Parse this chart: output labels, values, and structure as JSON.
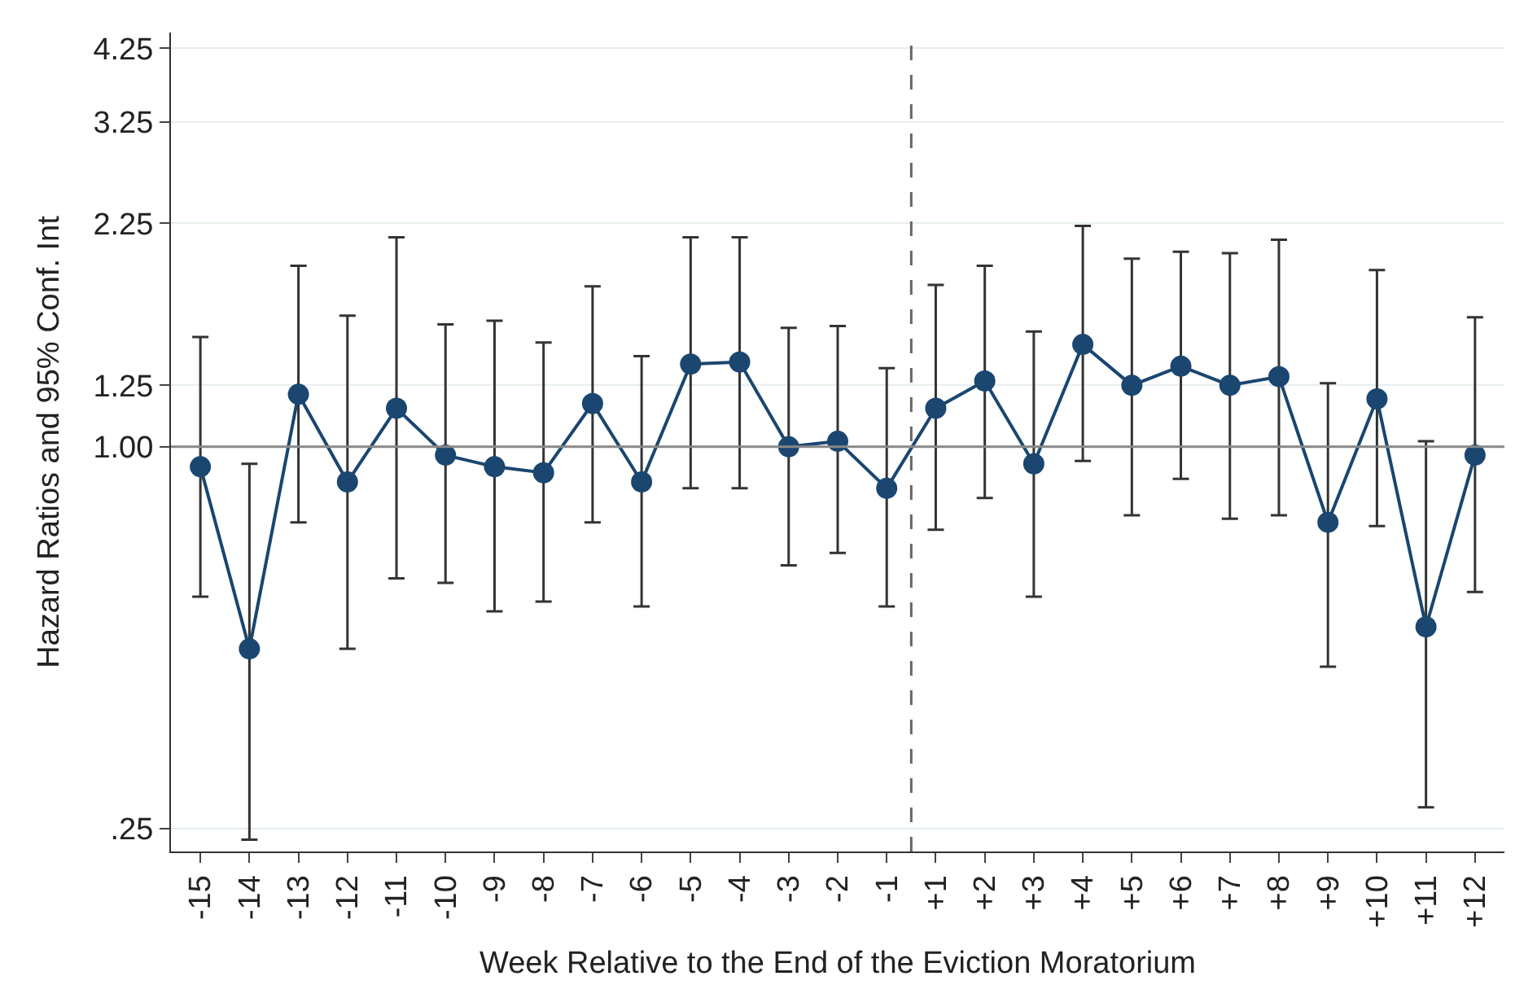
{
  "chart_data": {
    "type": "line",
    "xlabel": "Week Relative to the End of the Eviction Moratorium",
    "ylabel": "Hazard Ratios and 95% Conf. Int",
    "categories": [
      "-15",
      "-14",
      "-13",
      "-12",
      "-11",
      "-10",
      "-9",
      "-8",
      "-7",
      "-6",
      "-5",
      "-4",
      "-3",
      "-2",
      "-1",
      "+1",
      "+2",
      "+3",
      "+4",
      "+5",
      "+6",
      "+7",
      "+8",
      "+9",
      "+10",
      "+11",
      "+12"
    ],
    "series": [
      {
        "color": "#1a4670",
        "values": [
          0.93,
          0.48,
          1.21,
          0.88,
          1.15,
          0.97,
          0.93,
          0.91,
          1.17,
          0.88,
          1.35,
          1.36,
          1.0,
          1.02,
          0.86,
          1.15,
          1.27,
          0.94,
          1.45,
          1.25,
          1.34,
          1.25,
          1.29,
          0.76,
          1.19,
          0.52,
          0.97
        ],
        "errors": [
          [
            0.58,
            1.49
          ],
          [
            0.24,
            0.94
          ],
          [
            0.76,
            1.93
          ],
          [
            0.48,
            1.61
          ],
          [
            0.62,
            2.14
          ],
          [
            0.61,
            1.56
          ],
          [
            0.55,
            1.58
          ],
          [
            0.57,
            1.46
          ],
          [
            0.76,
            1.79
          ],
          [
            0.56,
            1.39
          ],
          [
            0.86,
            2.14
          ],
          [
            0.86,
            2.14
          ],
          [
            0.65,
            1.54
          ],
          [
            0.68,
            1.55
          ],
          [
            0.56,
            1.33
          ],
          [
            0.74,
            1.8
          ],
          [
            0.83,
            1.93
          ],
          [
            0.58,
            1.52
          ],
          [
            0.95,
            2.23
          ],
          [
            0.78,
            1.98
          ],
          [
            0.89,
            2.03
          ],
          [
            0.77,
            2.02
          ],
          [
            0.78,
            2.12
          ],
          [
            0.45,
            1.26
          ],
          [
            0.75,
            1.9
          ],
          [
            0.27,
            1.02
          ],
          [
            0.59,
            1.6
          ]
        ]
      }
    ],
    "log": true,
    "ylim": [
      0.23,
      4.5
    ],
    "yticks": [
      {
        "value": 0.25,
        "label": ".25"
      },
      {
        "value": 1,
        "label": "1.00"
      },
      {
        "value": 1.25,
        "label": "1.25"
      },
      {
        "value": 2.25,
        "label": "2.25"
      },
      {
        "value": 3.25,
        "label": "3.25"
      },
      {
        "value": 4.25,
        "label": "4.25"
      }
    ],
    "grid": "y",
    "marker": "circle",
    "line_style": "solid",
    "legend": false,
    "ref_lines": [
      {
        "axis": "y",
        "value": 1,
        "color": "#888888",
        "line_style": "solid"
      },
      {
        "axis": "x",
        "value": "+1",
        "color": "#666666",
        "line_style": "dashed"
      }
    ]
  }
}
